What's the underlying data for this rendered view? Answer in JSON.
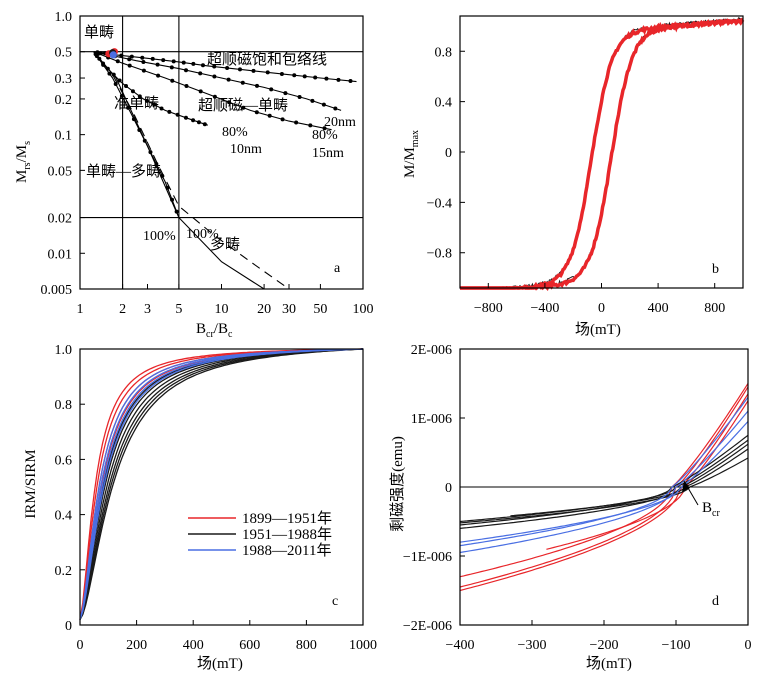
{
  "panels": {
    "a": {
      "label": "a",
      "xlabel_main": "B",
      "xlabel_sub1": "cr",
      "xlabel_mid": "/B",
      "xlabel_sub2": "c",
      "ylabel_main": "M",
      "ylabel_sub1": "rs",
      "ylabel_mid": "/M",
      "ylabel_sub2": "s",
      "annotations": {
        "sd": "单畴",
        "psd": "准单畴",
        "sd_md": "单畴—多畴",
        "md": "多畴",
        "sp_sd_env": "超顺磁饱和包络线",
        "sp_sd": "超顺磁—单畴",
        "p80a": "80%",
        "n10": "10nm",
        "p80b": "80%",
        "n15": "15nm",
        "n20": "20nm",
        "p100a": "100%",
        "p100b": "100%"
      }
    },
    "b": {
      "label": "b",
      "xlabel": "场(mT)",
      "ylabel_main": "M/M",
      "ylabel_sub": "max"
    },
    "c": {
      "label": "c",
      "xlabel": "场(mT)",
      "ylabel": "IRM/SIRM",
      "legend": [
        "1899—1951年",
        "1951—1988年",
        "1988—2011年"
      ]
    },
    "d": {
      "label": "d",
      "xlabel": "场(mT)",
      "ylabel": "剩磁强度(emu)",
      "bcr_main": "B",
      "bcr_sub": "cr"
    }
  },
  "colors": {
    "period1": "#e8262a",
    "period2": "#1a1a1a",
    "period3": "#4a6fe3"
  },
  "chart_data": [
    {
      "type": "scatter",
      "title": "a",
      "xscale": "log",
      "yscale": "log",
      "xlim": [
        1,
        100
      ],
      "ylim": [
        0.005,
        1
      ],
      "xticks": [
        "1",
        "2",
        "3",
        "5",
        "10",
        "20",
        "30",
        "50",
        "100"
      ],
      "yticks": [
        "1.0",
        "0.5",
        "0.3",
        "0.2",
        "0.1",
        "0.05",
        "0.02",
        "0.01",
        "0.005"
      ],
      "reference_lines": {
        "x": [
          2,
          5
        ],
        "y": [
          0.5,
          0.02
        ]
      },
      "mixing_curves": [
        {
          "x": [
            1.25,
            1.8,
            3,
            5,
            8,
            15,
            30,
            50,
            90
          ],
          "y": [
            0.5,
            0.47,
            0.44,
            0.41,
            0.38,
            0.35,
            0.32,
            0.3,
            0.28
          ],
          "marks": true
        },
        {
          "x": [
            1.25,
            2.5,
            5,
            10,
            20,
            40,
            70
          ],
          "y": [
            0.5,
            0.42,
            0.36,
            0.3,
            0.25,
            0.2,
            0.16
          ],
          "marks": true
        },
        {
          "x": [
            1.25,
            2,
            4,
            8,
            16,
            30,
            60
          ],
          "y": [
            0.5,
            0.4,
            0.3,
            0.22,
            0.16,
            0.13,
            0.11
          ],
          "marks": true
        },
        {
          "x": [
            1.25,
            1.5,
            2,
            2.8,
            4,
            6,
            8
          ],
          "y": [
            0.5,
            0.38,
            0.27,
            0.2,
            0.16,
            0.135,
            0.12
          ],
          "marks": true
        },
        {
          "x": [
            1.25,
            1.7,
            2.3,
            3,
            4,
            5
          ],
          "y": [
            0.5,
            0.3,
            0.15,
            0.08,
            0.04,
            0.02
          ],
          "marks": true
        },
        {
          "x": [
            1.25,
            1.8,
            3,
            5,
            10,
            20
          ],
          "y": [
            0.5,
            0.3,
            0.08,
            0.02,
            0.0085,
            0.005
          ],
          "marks": false
        },
        {
          "x": [
            1.25,
            1.7,
            2.4,
            3.5,
            5,
            9,
            16,
            30
          ],
          "y": [
            0.5,
            0.32,
            0.15,
            0.058,
            0.025,
            0.014,
            0.0085,
            0.005
          ],
          "marks": false,
          "dashed": true
        }
      ],
      "samples": [
        {
          "x": 1.6,
          "y": 0.48,
          "series": "1899—1951年"
        },
        {
          "x": 1.75,
          "y": 0.5,
          "series": "1899—1951年"
        },
        {
          "x": 1.7,
          "y": 0.49,
          "series": "1951—1988年"
        },
        {
          "x": 1.72,
          "y": 0.47,
          "series": "1988—2011年"
        }
      ]
    },
    {
      "type": "line",
      "title": "b",
      "xlim": [
        -1000,
        1000
      ],
      "ylim": [
        -1.08,
        1.08
      ],
      "xticks": [
        "-800",
        "-400",
        "0",
        "400",
        "800"
      ],
      "yticks": [
        "0.8",
        "0.4",
        "0",
        "-0.4",
        "-0.8"
      ],
      "hysteresis": {
        "bc": 70,
        "width": 145,
        "ms": 1.0,
        "high_field_slope": 8e-05,
        "black_offset": 0.012
      }
    },
    {
      "type": "line",
      "title": "c",
      "xlim": [
        0,
        1000
      ],
      "ylim": [
        0,
        1.0
      ],
      "xticks": [
        "0",
        "200",
        "400",
        "600",
        "800",
        "1000"
      ],
      "yticks": [
        "0",
        "0.2",
        "0.4",
        "0.6",
        "0.8",
        "1.0"
      ],
      "series": [
        {
          "name": "1899—1951年",
          "half_field": [
            55,
            62,
            70,
            78
          ]
        },
        {
          "name": "1951—1988年",
          "half_field": [
            85,
            92,
            100,
            108,
            115,
            122
          ]
        },
        {
          "name": "1988—2011年",
          "half_field": [
            70,
            76,
            82,
            88
          ]
        }
      ]
    },
    {
      "type": "line",
      "title": "d",
      "xlim": [
        -400,
        0
      ],
      "ylim": [
        -2e-06,
        2e-06
      ],
      "xticks": [
        "-400",
        "-300",
        "-200",
        "-100",
        "0"
      ],
      "yticks": [
        "2E-006",
        "1E-006",
        "0",
        "-1E-006",
        "-2E-006"
      ],
      "bcr": -100,
      "series": [
        {
          "name": "1899—1951年",
          "left_value": [
            -1.3e-06,
            -1.45e-06,
            -1.5e-06,
            -1.18e-06
          ],
          "right_value": [
            1.5e-06,
            1.45e-06,
            1.35e-06,
            1.25e-06
          ],
          "x0": [
            -400,
            -400,
            -400,
            -280
          ]
        },
        {
          "name": "1951—1988年",
          "left_value": [
            -5.5e-07,
            -5e-07,
            -6e-07,
            -4.8e-07,
            -5.2e-07
          ],
          "right_value": [
            7.5e-07,
            6.8e-07,
            6.2e-07,
            5.5e-07,
            4.2e-07
          ],
          "x0": [
            -400,
            -400,
            -400,
            -330,
            -400
          ]
        },
        {
          "name": "1988—2011年",
          "left_value": [
            -8.5e-07,
            -9.5e-07,
            -8e-07
          ],
          "right_value": [
            1.3e-06,
            1.1e-06,
            9.5e-07
          ],
          "x0": [
            -400,
            -400,
            -400
          ]
        }
      ]
    }
  ]
}
